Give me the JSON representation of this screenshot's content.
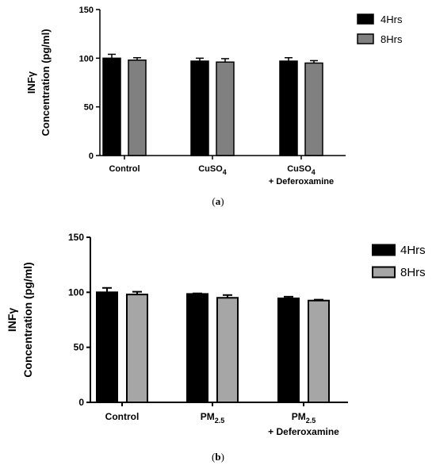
{
  "chart_data": [
    {
      "type": "bar",
      "panel_label": "(a)",
      "panel_letter": "a",
      "ylabel_line1": "INFγ",
      "ylabel_line2": "Concentration  (pg/ml)",
      "ylim": [
        0,
        150
      ],
      "yticks": [
        0,
        50,
        100,
        150
      ],
      "categories": [
        {
          "line1": "Control",
          "line2": ""
        },
        {
          "line1": "CuSO",
          "sub": "4",
          "line2": ""
        },
        {
          "line1": "CuSO",
          "sub": "4",
          "line2": "+ Deferoxamine"
        }
      ],
      "series": [
        {
          "name": "4Hrs",
          "color": "#000000",
          "values": [
            100,
            97,
            97
          ],
          "errors": [
            4,
            3,
            3.5
          ]
        },
        {
          "name": "8Hrs",
          "color": "#808080",
          "values": [
            98,
            96,
            95
          ],
          "errors": [
            2.5,
            3.5,
            2.5
          ]
        }
      ],
      "legend_position": "top-right",
      "grid": false
    },
    {
      "type": "bar",
      "panel_label": "(b)",
      "panel_letter": "b",
      "ylabel_line1": "INFγ",
      "ylabel_line2": "Concentration  (pg/ml)",
      "ylim": [
        0,
        150
      ],
      "yticks": [
        0,
        50,
        100,
        150
      ],
      "categories": [
        {
          "line1": "Control",
          "line2": ""
        },
        {
          "line1": "PM",
          "sub": "2.5",
          "line2": ""
        },
        {
          "line1": "PM",
          "sub": "2.5",
          "line2": "+ Deferoxamine"
        }
      ],
      "series": [
        {
          "name": "4Hrs",
          "color": "#000000",
          "values": [
            100,
            98.5,
            94.5
          ],
          "errors": [
            4,
            0.5,
            1.5
          ]
        },
        {
          "name": "8Hrs",
          "color": "#a6a6a6",
          "values": [
            98,
            95,
            92.5
          ],
          "errors": [
            2.5,
            2.5,
            0.8
          ]
        }
      ],
      "legend_position": "top-right",
      "grid": false
    }
  ]
}
